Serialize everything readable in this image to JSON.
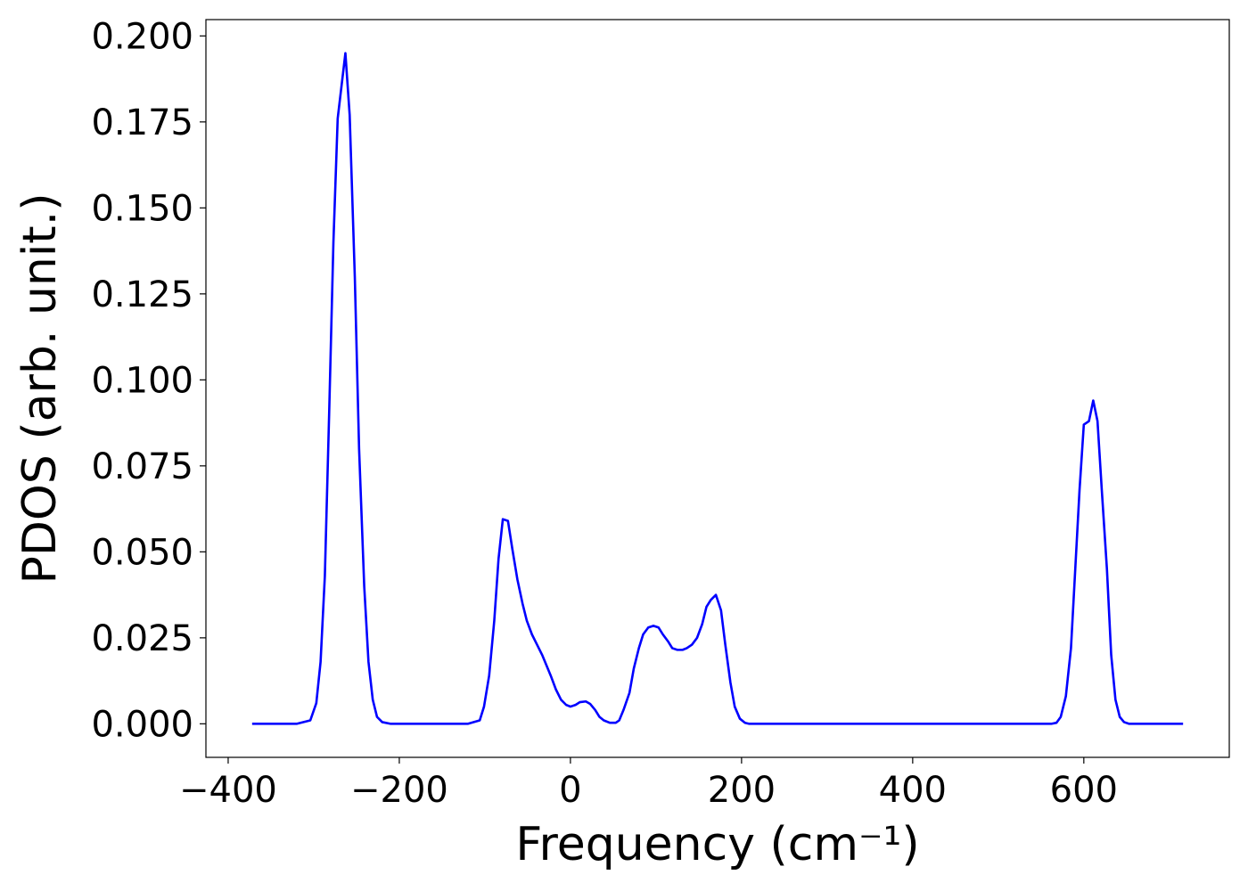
{
  "chart_data": {
    "type": "line",
    "xlabel": "Frequency (cm⁻¹)",
    "ylabel": "PDOS (arb. unit.)",
    "color": "#0000ff",
    "xlim": [
      -426,
      770
    ],
    "ylim": [
      -0.00975,
      0.20475
    ],
    "xticks": [
      {
        "value": -400,
        "label": "−400"
      },
      {
        "value": -200,
        "label": "−200"
      },
      0,
      200,
      400,
      600
    ],
    "yticks": [
      {
        "value": 0,
        "label": "0.000"
      },
      {
        "value": 0.025,
        "label": "0.025"
      },
      {
        "value": 0.05,
        "label": "0.050"
      },
      {
        "value": 0.075,
        "label": "0.075"
      },
      {
        "value": 0.1,
        "label": "0.100"
      },
      {
        "value": 0.125,
        "label": "0.125"
      },
      {
        "value": 0.15,
        "label": "0.150"
      },
      {
        "value": 0.175,
        "label": "0.175"
      },
      {
        "value": 0.2,
        "label": "0.200"
      }
    ],
    "x": [
      -372,
      -320,
      -304,
      -297,
      -292,
      -287,
      -282,
      -277,
      -272,
      -263,
      -258,
      -252,
      -247,
      -241,
      -236,
      -231,
      -226,
      -220,
      -210,
      -120,
      -106,
      -101,
      -95,
      -89,
      -84,
      -79,
      -73,
      -68,
      -62,
      -56,
      -51,
      -45,
      -39,
      -33,
      -28,
      -23,
      -17,
      -11,
      -5,
      0,
      6,
      11,
      18,
      23,
      29,
      34,
      39,
      46,
      53,
      57,
      62,
      69,
      74,
      80,
      85,
      91,
      97,
      103,
      108,
      114,
      119,
      125,
      131,
      136,
      142,
      148,
      154,
      159,
      164,
      170,
      176,
      181,
      187,
      192,
      198,
      204,
      209,
      562,
      568,
      573,
      579,
      585,
      590,
      595,
      600,
      606,
      611,
      616,
      621,
      627,
      632,
      637,
      642,
      647,
      653,
      716
    ],
    "values": [
      0,
      0,
      0.001,
      0.006,
      0.018,
      0.043,
      0.09,
      0.14,
      0.176,
      0.195,
      0.177,
      0.13,
      0.08,
      0.04,
      0.018,
      0.007,
      0.002,
      0.0005,
      0,
      0,
      0.001,
      0.005,
      0.014,
      0.03,
      0.048,
      0.0595,
      0.059,
      0.051,
      0.042,
      0.035,
      0.03,
      0.026,
      0.023,
      0.02,
      0.017,
      0.014,
      0.01,
      0.007,
      0.0055,
      0.005,
      0.0055,
      0.0063,
      0.0065,
      0.0058,
      0.004,
      0.002,
      0.001,
      0.0003,
      0.0003,
      0.001,
      0.004,
      0.009,
      0.016,
      0.022,
      0.026,
      0.028,
      0.0285,
      0.028,
      0.026,
      0.024,
      0.022,
      0.0215,
      0.0215,
      0.022,
      0.023,
      0.025,
      0.029,
      0.034,
      0.036,
      0.0375,
      0.033,
      0.023,
      0.012,
      0.005,
      0.0015,
      0.0003,
      0,
      0,
      0.0003,
      0.002,
      0.008,
      0.022,
      0.045,
      0.068,
      0.087,
      0.088,
      0.094,
      0.088,
      0.068,
      0.045,
      0.02,
      0.007,
      0.002,
      0.0005,
      0,
      0
    ]
  }
}
